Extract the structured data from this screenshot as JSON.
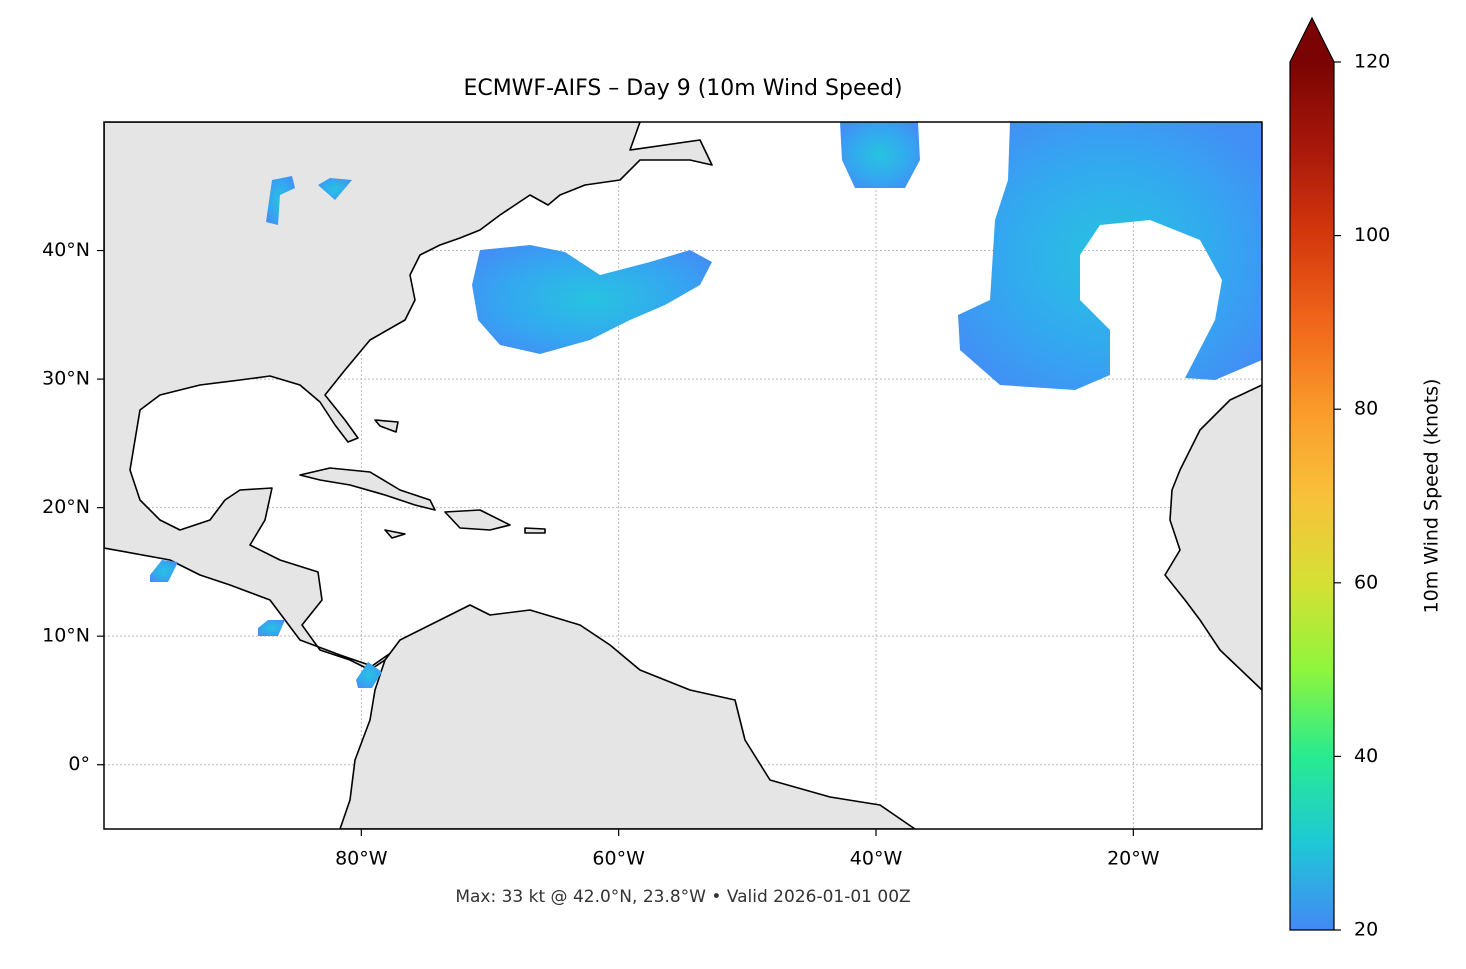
{
  "chart_data": {
    "type": "map",
    "title": "ECMWF-AIFS – Day 9 (10m Wind Speed)",
    "footnote": "Max: 33 kt @ 42.0°N, 23.8°W • Valid 2026-01-01 00Z",
    "xlim": [
      -100,
      -10
    ],
    "ylim": [
      -5,
      50
    ],
    "xticks": [
      {
        "value": -80,
        "label": "80°W"
      },
      {
        "value": -60,
        "label": "60°W"
      },
      {
        "value": -40,
        "label": "40°W"
      },
      {
        "value": -20,
        "label": "20°W"
      }
    ],
    "yticks": [
      {
        "value": 0,
        "label": "0°"
      },
      {
        "value": 10,
        "label": "10°N"
      },
      {
        "value": 20,
        "label": "20°N"
      },
      {
        "value": 30,
        "label": "30°N"
      },
      {
        "value": 40,
        "label": "40°N"
      }
    ],
    "grid": true,
    "colorbar": {
      "label": "10m Wind Speed (knots)",
      "lim": [
        20,
        120
      ],
      "ticks": [
        20,
        40,
        60,
        80,
        100,
        120
      ],
      "colors": [
        "#4388f5",
        "#1ec8d6",
        "#27eb8f",
        "#8ff53c",
        "#d6e034",
        "#f8c13a",
        "#fa9a2a",
        "#f0661a",
        "#d4380d",
        "#a8180a",
        "#7a0403"
      ],
      "extend": "max"
    }
  }
}
